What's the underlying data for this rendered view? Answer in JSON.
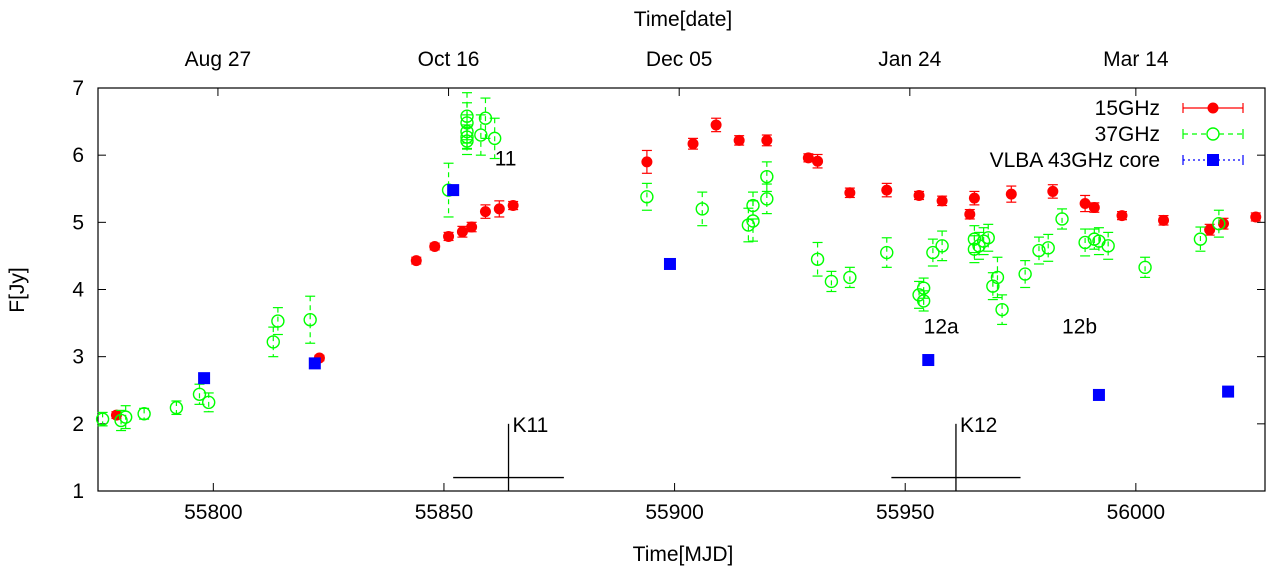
{
  "chart_data": {
    "type": "scatter",
    "title": "",
    "xlabel": "Time[MJD]",
    "ylabel": "F[Jy]",
    "top_xlabel": "Time[date]",
    "xlim": [
      55775,
      56028
    ],
    "ylim": [
      1,
      7
    ],
    "x_ticks": [
      55800,
      55850,
      55900,
      55950,
      56000
    ],
    "y_ticks": [
      1,
      2,
      3,
      4,
      5,
      6,
      7
    ],
    "top_ticks": [
      {
        "x": 55801,
        "label": "Aug 27"
      },
      {
        "x": 55851,
        "label": "Oct 16"
      },
      {
        "x": 55901,
        "label": "Dec 05"
      },
      {
        "x": 55951,
        "label": "Jan 24"
      },
      {
        "x": 56000,
        "label": "Mar 14"
      }
    ],
    "grid": false,
    "legend_position": "top-right",
    "series": [
      {
        "name": "15GHz",
        "color": "#ff0000",
        "marker": "filled-circle",
        "points": [
          [
            55779,
            2.13,
            0.05
          ],
          [
            55823,
            2.98,
            0.04
          ],
          [
            55844,
            4.43,
            0.05
          ],
          [
            55848,
            4.64,
            0.05
          ],
          [
            55851,
            4.79,
            0.06
          ],
          [
            55854,
            4.86,
            0.08
          ],
          [
            55856,
            4.93,
            0.07
          ],
          [
            55859,
            5.16,
            0.1
          ],
          [
            55862,
            5.2,
            0.12
          ],
          [
            55865,
            5.25,
            0.06
          ],
          [
            55894,
            5.9,
            0.17
          ],
          [
            55904,
            6.17,
            0.08
          ],
          [
            55909,
            6.45,
            0.1
          ],
          [
            55914,
            6.22,
            0.07
          ],
          [
            55920,
            6.22,
            0.08
          ],
          [
            55929,
            5.96,
            0.06
          ],
          [
            55931,
            5.91,
            0.1
          ],
          [
            55938,
            5.44,
            0.07
          ],
          [
            55946,
            5.48,
            0.1
          ],
          [
            55953,
            5.4,
            0.06
          ],
          [
            55958,
            5.32,
            0.07
          ],
          [
            55964,
            5.12,
            0.07
          ],
          [
            55965,
            5.36,
            0.1
          ],
          [
            55973,
            5.42,
            0.12
          ],
          [
            55982,
            5.46,
            0.1
          ],
          [
            55989,
            5.28,
            0.12
          ],
          [
            55991,
            5.22,
            0.07
          ],
          [
            55997,
            5.1,
            0.06
          ],
          [
            56006,
            5.03,
            0.07
          ],
          [
            56016,
            4.89,
            0.08
          ],
          [
            56019,
            4.98,
            0.08
          ],
          [
            56026,
            5.08,
            0.06
          ]
        ]
      },
      {
        "name": "37GHz",
        "color": "#00ff00",
        "marker": "open-circle",
        "points": [
          [
            55776,
            2.07,
            0.1
          ],
          [
            55780,
            2.05,
            0.15
          ],
          [
            55781,
            2.1,
            0.17
          ],
          [
            55785,
            2.15,
            0.08
          ],
          [
            55792,
            2.24,
            0.1
          ],
          [
            55797,
            2.44,
            0.15
          ],
          [
            55799,
            2.32,
            0.14
          ],
          [
            55813,
            3.22,
            0.22
          ],
          [
            55814,
            3.53,
            0.2
          ],
          [
            55821,
            3.55,
            0.35
          ],
          [
            55851,
            5.48,
            0.4
          ],
          [
            55855,
            6.27,
            0.18
          ],
          [
            55855,
            6.58,
            0.35
          ],
          [
            55855,
            6.48,
            0.3
          ],
          [
            55855,
            6.35,
            0.25
          ],
          [
            55855,
            6.21,
            0.2
          ],
          [
            55858,
            6.3,
            0.3
          ],
          [
            55859,
            6.55,
            0.3
          ],
          [
            55861,
            6.25,
            0.3
          ],
          [
            55894,
            5.38,
            0.2
          ],
          [
            55906,
            5.2,
            0.25
          ],
          [
            55916,
            4.96,
            0.25
          ],
          [
            55917,
            5.25,
            0.2
          ],
          [
            55917,
            5.02,
            0.3
          ],
          [
            55920,
            5.68,
            0.22
          ],
          [
            55920,
            5.35,
            0.22
          ],
          [
            55931,
            4.45,
            0.25
          ],
          [
            55934,
            4.12,
            0.15
          ],
          [
            55938,
            4.18,
            0.15
          ],
          [
            55946,
            4.55,
            0.22
          ],
          [
            55953,
            3.92,
            0.2
          ],
          [
            55954,
            3.83,
            0.15
          ],
          [
            55954,
            4.02,
            0.15
          ],
          [
            55956,
            4.55,
            0.2
          ],
          [
            55958,
            4.65,
            0.22
          ],
          [
            55965,
            4.6,
            0.2
          ],
          [
            55965,
            4.75,
            0.2
          ],
          [
            55966,
            4.65,
            0.2
          ],
          [
            55967,
            4.72,
            0.2
          ],
          [
            55968,
            4.77,
            0.2
          ],
          [
            55969,
            4.05,
            0.2
          ],
          [
            55970,
            4.18,
            0.3
          ],
          [
            55971,
            3.7,
            0.22
          ],
          [
            55976,
            4.23,
            0.2
          ],
          [
            55979,
            4.58,
            0.2
          ],
          [
            55981,
            4.62,
            0.2
          ],
          [
            55984,
            5.05,
            0.15
          ],
          [
            55989,
            4.7,
            0.2
          ],
          [
            55991,
            4.75,
            0.15
          ],
          [
            55992,
            4.72,
            0.2
          ],
          [
            55994,
            4.65,
            0.2
          ],
          [
            56002,
            4.33,
            0.15
          ],
          [
            56014,
            4.75,
            0.18
          ],
          [
            56018,
            4.98,
            0.2
          ]
        ]
      },
      {
        "name": "VLBA 43GHz core",
        "color": "#0000ff",
        "marker": "filled-square",
        "points": [
          [
            55798,
            2.68
          ],
          [
            55822,
            2.9
          ],
          [
            55852,
            5.48
          ],
          [
            55899,
            4.38
          ],
          [
            55955,
            2.95
          ],
          [
            55992,
            2.43
          ],
          [
            56020,
            2.48
          ]
        ]
      }
    ],
    "annotations": [
      {
        "label": "11",
        "x": 55861,
        "y": 5.95
      },
      {
        "label": "12a",
        "x": 55954,
        "y": 3.45
      },
      {
        "label": "12b",
        "x": 55984,
        "y": 3.45
      }
    ],
    "markers": [
      {
        "label": "K11",
        "x": 55864,
        "y_top": 2.0,
        "y_bar": 1.2,
        "x_range": [
          55852,
          55876
        ]
      },
      {
        "label": "K12",
        "x": 55961,
        "y_top": 2.0,
        "y_bar": 1.2,
        "x_range": [
          55947,
          55975
        ]
      }
    ]
  }
}
